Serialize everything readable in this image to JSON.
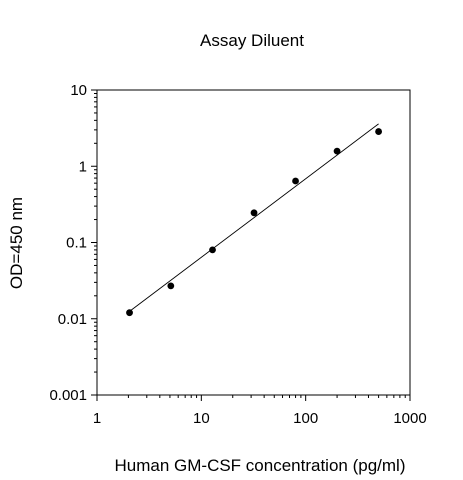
{
  "chart_data": {
    "type": "scatter",
    "title": "Assay Diluent",
    "xlabel": "Human GM-CSF concentration (pg/ml)",
    "ylabel": "OD=450 nm",
    "xscale": "log",
    "yscale": "log",
    "xlim": [
      1,
      1000
    ],
    "ylim": [
      0.001,
      10
    ],
    "xticks": [
      1,
      10,
      100,
      1000
    ],
    "xtick_labels": [
      "1",
      "10",
      "100",
      "1000"
    ],
    "yticks": [
      0.001,
      0.01,
      0.1,
      1,
      10
    ],
    "ytick_labels": [
      "0.001",
      "0.01",
      "0.1",
      "1",
      "10"
    ],
    "grid": false,
    "legend": "none",
    "points": [
      {
        "x": 2.05,
        "y": 0.012
      },
      {
        "x": 5.1,
        "y": 0.027
      },
      {
        "x": 12.8,
        "y": 0.08
      },
      {
        "x": 32,
        "y": 0.245
      },
      {
        "x": 80,
        "y": 0.64
      },
      {
        "x": 200,
        "y": 1.58
      },
      {
        "x": 500,
        "y": 2.85
      }
    ],
    "fit_line": {
      "x": [
        2.05,
        500
      ],
      "y": [
        0.0125,
        3.6
      ]
    },
    "colors": {
      "marker": "#000000",
      "line": "#000000",
      "axis": "#000000"
    }
  }
}
